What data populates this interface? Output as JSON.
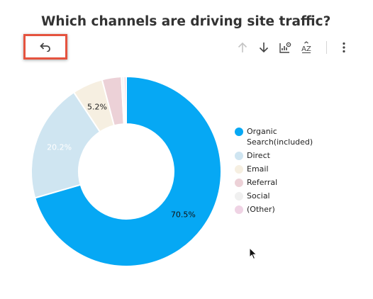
{
  "title": "Which channels are driving site traffic?",
  "toolbar": {
    "icons": [
      "undo-icon",
      "arrow-up-icon",
      "arrow-down-icon",
      "chart-settings-icon",
      "sort-az-icon",
      "more-vert-icon"
    ],
    "sort_label": "AZ"
  },
  "chart_data": {
    "type": "pie",
    "style": "donut",
    "categories": [
      "Organic Search(included)",
      "Direct",
      "Email",
      "Referral",
      "Social",
      "(Other)"
    ],
    "values": [
      70.5,
      20.2,
      5.2,
      3.3,
      0.4,
      0.4
    ],
    "data_labels": [
      "70.5%",
      "20.2%",
      "5.2%",
      "",
      "",
      ""
    ],
    "colors": [
      "#06a8f4",
      "#cfe5f1",
      "#f6efe1",
      "#ecd1d7",
      "#f0f0f0",
      "#efd3e4"
    ],
    "label_colors": [
      "#111111",
      "#ffffff",
      "#222222",
      "",
      "",
      ""
    ],
    "legend_position": "right"
  }
}
